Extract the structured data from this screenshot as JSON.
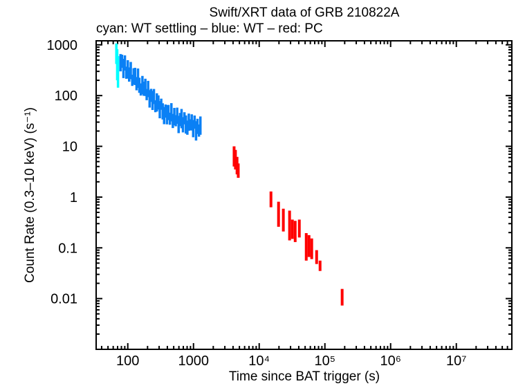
{
  "title": "Swift/XRT data of GRB 210822A",
  "subtitle": "cyan: WT settling – blue: WT – red: PC",
  "xlabel": "Time since BAT trigger (s)",
  "ylabel": "Count Rate (0.3–10 keV) (s⁻¹)",
  "colors": {
    "wt_settling": "#00ffff",
    "wt": "#0a80f5",
    "pc": "#ff0000",
    "axis": "#000000",
    "background": "#ffffff"
  },
  "chart_data": {
    "type": "scatter",
    "subtype": "vertical-error-bars",
    "x_scale": "log",
    "y_scale": "log",
    "grid": false,
    "legend_position": "subtitle-line",
    "xlim": [
      33,
      70000000
    ],
    "ylim": [
      0.001,
      1200
    ],
    "x_major_ticks": [
      100,
      1000,
      10000,
      100000,
      1000000,
      10000000
    ],
    "x_tick_labels": [
      "100",
      "1000",
      "10⁴",
      "10⁵",
      "10⁶",
      "10⁷"
    ],
    "y_major_ticks": [
      1000,
      100,
      10,
      1,
      0.1,
      0.01
    ],
    "y_tick_labels": [
      "1000",
      "100",
      "10",
      "1",
      "0.1",
      "0.01"
    ],
    "series": [
      {
        "key": "wt-settling",
        "name": "WT settling",
        "color": "#00ffff",
        "segments": [
          [
            67,
            420,
            1065
          ],
          [
            69,
            200,
            820
          ],
          [
            71,
            143,
            600
          ]
        ]
      },
      {
        "key": "wt",
        "name": "WT",
        "color": "#0a80f5",
        "segments": [
          [
            77.6,
            300,
            658
          ],
          [
            81.7,
            352,
            640
          ],
          [
            85.9,
            221,
            530
          ],
          [
            90.4,
            311,
            620
          ],
          [
            95.1,
            214,
            372
          ],
          [
            100,
            217,
            498
          ],
          [
            105,
            188,
            359
          ],
          [
            111,
            210,
            460
          ],
          [
            117,
            155,
            258
          ],
          [
            123,
            166,
            346
          ],
          [
            129,
            161,
            353
          ],
          [
            136,
            127,
            232
          ],
          [
            143,
            142,
            342
          ],
          [
            150,
            113,
            225
          ],
          [
            158,
            100,
            174
          ],
          [
            167,
            106,
            244
          ],
          [
            175,
            99,
            188
          ],
          [
            185,
            98,
            215
          ],
          [
            194,
            81,
            135
          ],
          [
            204,
            93,
            195
          ],
          [
            215,
            58,
            128
          ],
          [
            226,
            75,
            136
          ],
          [
            238,
            52,
            124
          ],
          [
            250,
            68,
            135
          ],
          [
            263,
            47,
            81
          ],
          [
            277,
            48.5,
            111
          ],
          [
            292,
            53,
            101
          ],
          [
            307,
            35.7,
            78
          ],
          [
            323,
            52.5,
            87
          ],
          [
            340,
            33.8,
            70.6
          ],
          [
            357,
            27.3,
            59.8
          ],
          [
            376,
            36.7,
            66.8
          ],
          [
            395,
            27.1,
            65
          ],
          [
            416,
            32.8,
            65.5
          ],
          [
            438,
            26.6,
            46.1
          ],
          [
            461,
            31,
            71
          ],
          [
            485,
            22.9,
            43.6
          ],
          [
            511,
            26.1,
            57.2
          ],
          [
            537,
            24.8,
            41.2
          ],
          [
            565,
            27.7,
            57.9
          ],
          [
            594,
            18.2,
            39.9
          ],
          [
            625,
            25,
            45.6
          ],
          [
            658,
            22.7,
            54.5
          ],
          [
            692,
            18.8,
            37.6
          ],
          [
            728,
            27.1,
            47
          ],
          [
            767,
            17.8,
            40.7
          ],
          [
            807,
            16.9,
            32.2
          ],
          [
            849,
            20.2,
            44.2
          ],
          [
            893,
            20.6,
            34.2
          ],
          [
            940,
            20.5,
            42.8
          ],
          [
            989,
            15.1,
            33.1
          ],
          [
            1040,
            22.2,
            40.5
          ],
          [
            1094,
            13,
            31.3
          ],
          [
            1151,
            17.5,
            34.9
          ],
          [
            1211,
            15.5,
            27
          ],
          [
            1274,
            16.9,
            38.8
          ]
        ]
      },
      {
        "key": "pc",
        "name": "PC",
        "color": "#ff0000",
        "segments": [
          [
            4150,
            4.0,
            10.0
          ],
          [
            4350,
            3.5,
            8.5
          ],
          [
            4600,
            2.8,
            6.2
          ],
          [
            4800,
            2.4,
            4.6
          ],
          [
            15100,
            0.63,
            1.29
          ],
          [
            19700,
            0.26,
            0.81
          ],
          [
            23300,
            0.21,
            0.59
          ],
          [
            29000,
            0.14,
            0.54
          ],
          [
            32000,
            0.15,
            0.36
          ],
          [
            35300,
            0.13,
            0.34
          ],
          [
            40800,
            0.16,
            0.36
          ],
          [
            52000,
            0.056,
            0.195
          ],
          [
            57300,
            0.066,
            0.178
          ],
          [
            63000,
            0.06,
            0.153
          ],
          [
            74800,
            0.048,
            0.09
          ],
          [
            84400,
            0.035,
            0.056
          ],
          [
            183000,
            0.0073,
            0.0155
          ]
        ]
      }
    ]
  }
}
